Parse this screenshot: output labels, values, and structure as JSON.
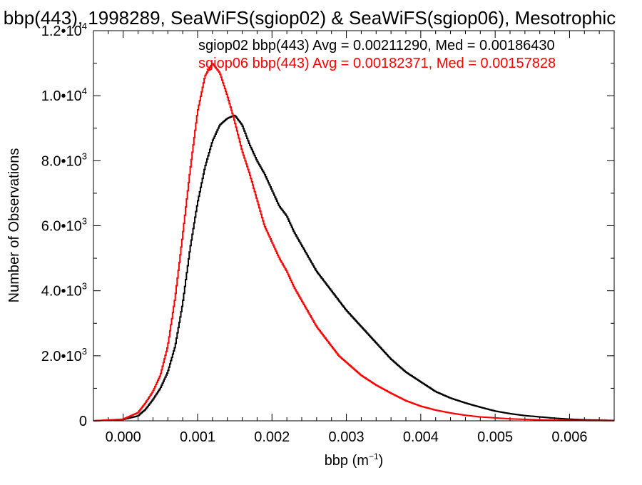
{
  "chart_data": {
    "type": "line",
    "style": "step-histogram",
    "title": "bbp(443), 1998289, SeaWiFS(sgiop02) & SeaWiFS(sgiop06), Mesotrophic",
    "xlabel_main": "bbp (m",
    "xlabel_sup": "−1",
    "xlabel_close": ")",
    "ylabel": "Number of Observations",
    "xlim": [
      -0.0004,
      0.0066
    ],
    "ylim": [
      0,
      12000
    ],
    "x_ticks": [
      {
        "value": 0.0,
        "label": "0.000"
      },
      {
        "value": 0.001,
        "label": "0.001"
      },
      {
        "value": 0.002,
        "label": "0.002"
      },
      {
        "value": 0.003,
        "label": "0.003"
      },
      {
        "value": 0.004,
        "label": "0.004"
      },
      {
        "value": 0.005,
        "label": "0.005"
      },
      {
        "value": 0.006,
        "label": "0.006"
      }
    ],
    "y_ticks": [
      {
        "value": 0,
        "mant": "0",
        "exp": ""
      },
      {
        "value": 2000,
        "mant": "2.0•10",
        "exp": "3"
      },
      {
        "value": 4000,
        "mant": "4.0•10",
        "exp": "3"
      },
      {
        "value": 6000,
        "mant": "6.0•10",
        "exp": "3"
      },
      {
        "value": 8000,
        "mant": "8.0•10",
        "exp": "3"
      },
      {
        "value": 10000,
        "mant": "1.0•10",
        "exp": "4"
      },
      {
        "value": 12000,
        "mant": "1.2•10",
        "exp": "4"
      }
    ],
    "grid": false,
    "legend_position": "top-right",
    "series": [
      {
        "name": "sgiop02 bbp(443)",
        "stats": "sgiop02 bbp(443) Avg = 0.00211290, Med = 0.00186430",
        "color": "#000000",
        "x": [
          -0.0004,
          0.0,
          0.0002,
          0.0003,
          0.0004,
          0.0005,
          0.0006,
          0.0007,
          0.0008,
          0.0009,
          0.001,
          0.0011,
          0.0012,
          0.0013,
          0.0014,
          0.0015,
          0.0016,
          0.0017,
          0.0018,
          0.0019,
          0.002,
          0.0021,
          0.0022,
          0.0023,
          0.0024,
          0.0025,
          0.0026,
          0.0027,
          0.0028,
          0.0029,
          0.003,
          0.0032,
          0.0034,
          0.0036,
          0.0038,
          0.004,
          0.0042,
          0.0044,
          0.0046,
          0.0048,
          0.005,
          0.0052,
          0.0054,
          0.0056,
          0.0058,
          0.006,
          0.0062,
          0.0066
        ],
        "values": [
          0,
          40,
          150,
          350,
          650,
          1000,
          1500,
          2300,
          3600,
          5300,
          6700,
          7800,
          8600,
          9100,
          9300,
          9400,
          9100,
          8500,
          8000,
          7600,
          7100,
          6600,
          6300,
          5800,
          5400,
          5000,
          4600,
          4300,
          4000,
          3700,
          3400,
          2900,
          2400,
          1900,
          1500,
          1200,
          900,
          700,
          550,
          420,
          300,
          220,
          160,
          120,
          80,
          50,
          30,
          10
        ]
      },
      {
        "name": "sgiop06 bbp(443)",
        "stats": "sgiop06 bbp(443) Avg = 0.00182371, Med = 0.00157828",
        "color": "#ff0000",
        "x": [
          -0.0004,
          0.0,
          0.0002,
          0.0003,
          0.0004,
          0.0005,
          0.0006,
          0.0007,
          0.0008,
          0.0009,
          0.001,
          0.0011,
          0.0012,
          0.0013,
          0.0014,
          0.0015,
          0.0016,
          0.0017,
          0.0018,
          0.0019,
          0.002,
          0.0021,
          0.0022,
          0.0023,
          0.0024,
          0.0025,
          0.0026,
          0.0027,
          0.0028,
          0.0029,
          0.003,
          0.0032,
          0.0034,
          0.0036,
          0.0038,
          0.004,
          0.0042,
          0.0044,
          0.0046,
          0.0048,
          0.005,
          0.0052,
          0.0054,
          0.0056,
          0.0058,
          0.006,
          0.0062,
          0.0066
        ],
        "values": [
          0,
          50,
          250,
          550,
          900,
          1400,
          2300,
          3800,
          5700,
          7700,
          9500,
          10600,
          11000,
          10700,
          10000,
          9200,
          8300,
          7600,
          6800,
          6000,
          5500,
          5000,
          4600,
          4100,
          3700,
          3300,
          2900,
          2600,
          2300,
          2000,
          1800,
          1400,
          1100,
          850,
          620,
          450,
          330,
          240,
          170,
          120,
          90,
          60,
          45,
          30,
          20,
          15,
          10,
          5
        ]
      }
    ]
  }
}
